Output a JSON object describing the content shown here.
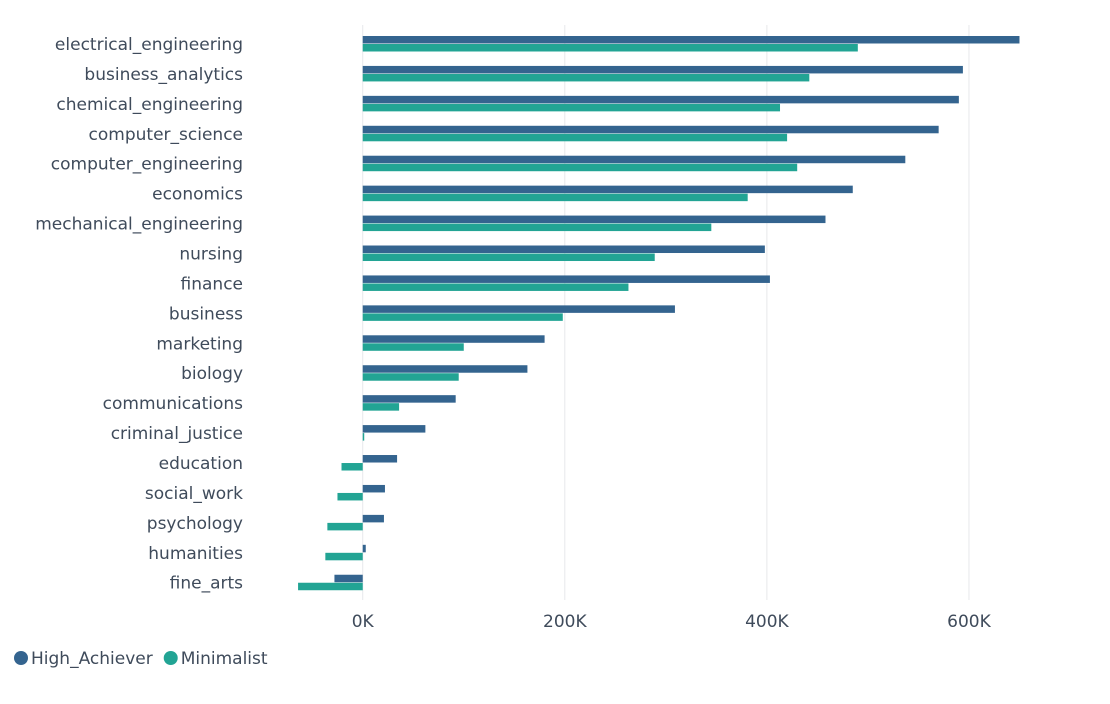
{
  "chart_data": {
    "type": "bar",
    "orientation": "horizontal",
    "categories": [
      "electrical_engineering",
      "business_analytics",
      "chemical_engineering",
      "computer_science",
      "computer_engineering",
      "economics",
      "mechanical_engineering",
      "nursing",
      "finance",
      "business",
      "marketing",
      "biology",
      "communications",
      "criminal_justice",
      "education",
      "social_work",
      "psychology",
      "humanities",
      "fine_arts"
    ],
    "series": [
      {
        "name": "High_Achiever",
        "color": "#34648f",
        "values": [
          650000,
          594000,
          590000,
          570000,
          537000,
          485000,
          458000,
          398000,
          403000,
          309000,
          180000,
          163000,
          92000,
          62000,
          34000,
          22000,
          21000,
          3000,
          -28000
        ]
      },
      {
        "name": "Minimalist",
        "color": "#22a494",
        "values": [
          490000,
          442000,
          413000,
          420000,
          430000,
          381000,
          345000,
          289000,
          263000,
          198000,
          100000,
          95000,
          36000,
          1000,
          -21000,
          -25000,
          -35000,
          -37000,
          -64000
        ]
      }
    ],
    "x_ticks": [
      0,
      200000,
      400000,
      600000
    ],
    "x_tick_labels": [
      "0K",
      "200K",
      "400K",
      "600K"
    ],
    "xlim": [
      -70000,
      700000
    ],
    "grid": true,
    "legend_position": "bottom-left"
  }
}
